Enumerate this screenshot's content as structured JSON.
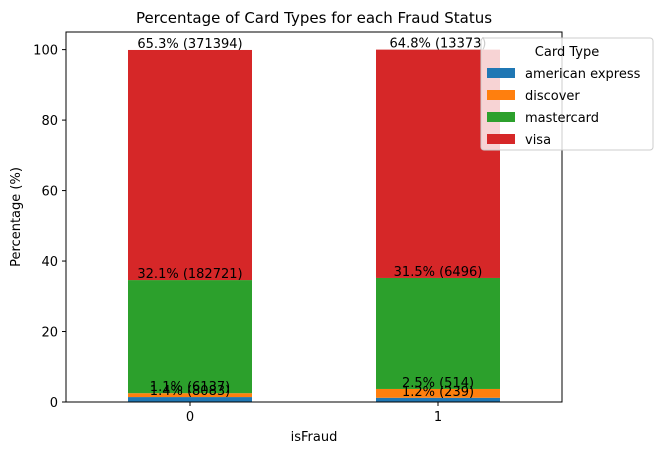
{
  "chart_data": {
    "type": "bar",
    "stacked": true,
    "title": "Percentage of Card Types for each Fraud Status",
    "xlabel": "isFraud",
    "ylabel": "Percentage (%)",
    "categories": [
      "0",
      "1"
    ],
    "ylim": [
      0,
      105
    ],
    "yticks": [
      0,
      20,
      40,
      60,
      80,
      100
    ],
    "grid": false,
    "legend": {
      "title": "Card Type",
      "placement": "top-right"
    },
    "series": [
      {
        "name": "american express",
        "color": "#1f77b4",
        "values": [
          1.4,
          1.2
        ],
        "labels": [
          "1.4% (8083)",
          "1.2% (239)"
        ]
      },
      {
        "name": "discover",
        "color": "#ff7f0e",
        "values": [
          1.1,
          2.5
        ],
        "labels": [
          "1.1% (6137)",
          "2.5% (514)"
        ]
      },
      {
        "name": "mastercard",
        "color": "#2ca02c",
        "values": [
          32.1,
          31.5
        ],
        "labels": [
          "32.1% (182721)",
          "31.5% (6496)"
        ]
      },
      {
        "name": "visa",
        "color": "#d62728",
        "values": [
          65.3,
          64.8
        ],
        "labels": [
          "65.3% (371394)",
          "64.8% (13373)"
        ]
      }
    ]
  }
}
